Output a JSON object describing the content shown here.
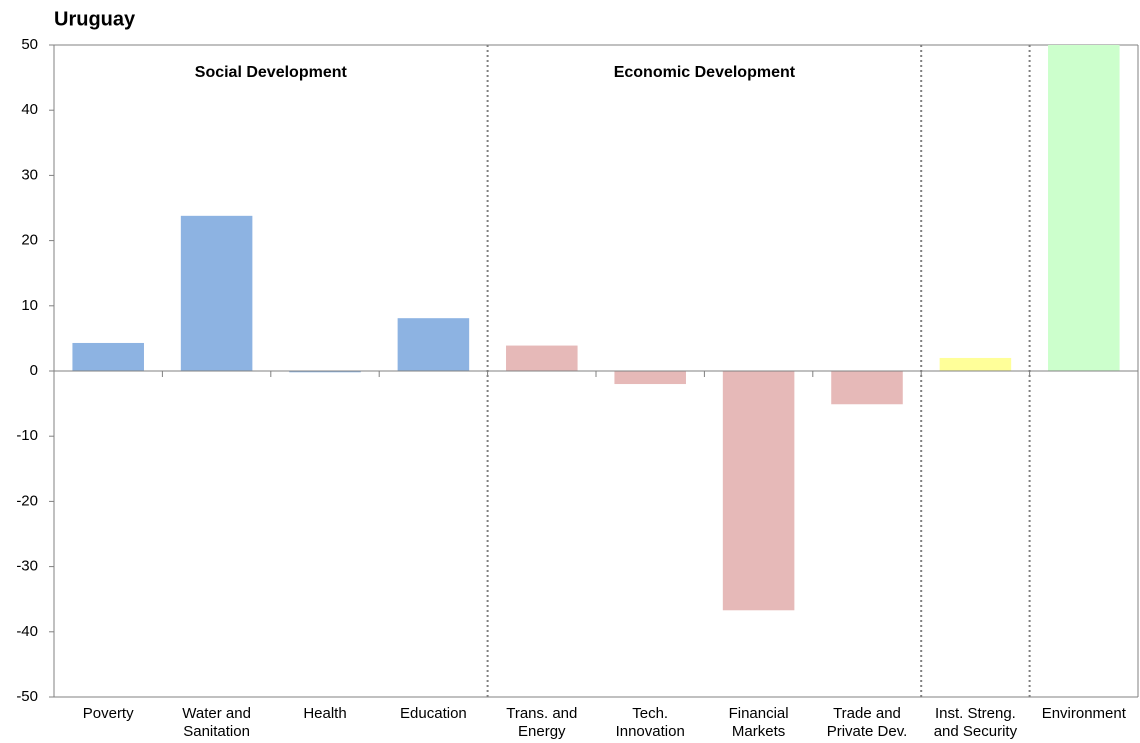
{
  "chart_data": {
    "type": "bar",
    "title": "Uruguay",
    "categories": [
      "Poverty",
      "Water and\nSanitation",
      "Health",
      "Education",
      "Trans. and\nEnergy",
      "Tech.\nInnovation",
      "Financial\nMarkets",
      "Trade and\nPrivate Dev.",
      "Inst. Streng.\nand Security",
      "Environment"
    ],
    "values": [
      4.3,
      23.8,
      -0.2,
      8.1,
      3.9,
      -2,
      -36.7,
      -5.1,
      2,
      50
    ],
    "colors": [
      "#8db3e2",
      "#8db3e2",
      "#8db3e2",
      "#8db3e2",
      "#e6b9b8",
      "#e6b9b8",
      "#e6b9b8",
      "#e6b9b8",
      "#ffff99",
      "#ccffcc"
    ],
    "groups": [
      {
        "name": "Social Development",
        "color": "#376092",
        "span": 4
      },
      {
        "name": "Economic Development",
        "color": "#953735",
        "span": 4
      },
      {
        "span": 1
      },
      {
        "span": 1
      }
    ],
    "ylim": [
      -50,
      50
    ],
    "yticks": [
      -50,
      -40,
      -30,
      -20,
      -10,
      0,
      10,
      20,
      30,
      40,
      50
    ]
  }
}
